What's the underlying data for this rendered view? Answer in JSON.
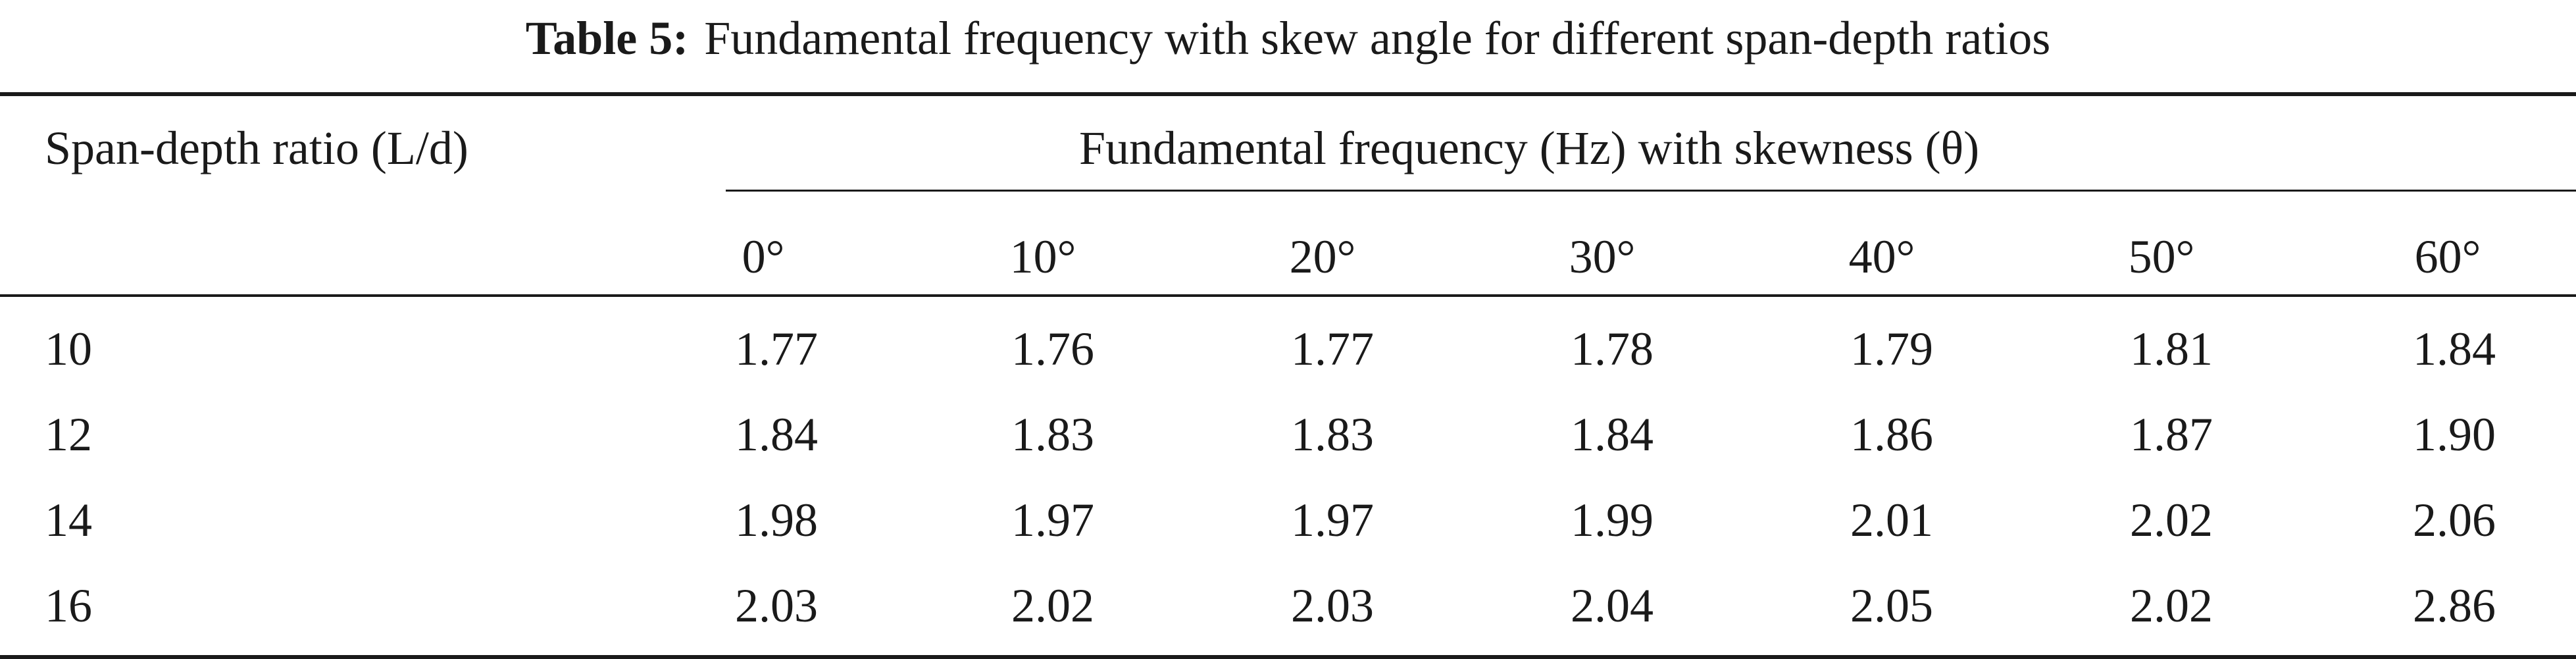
{
  "caption": {
    "label": "Table 5:",
    "text": "Fundamental frequency with skew angle for different span-depth ratios"
  },
  "table": {
    "row_header_label": "Span-depth ratio (L/d)",
    "group_header": "Fundamental frequency (Hz) with skewness (θ)",
    "columns": [
      "0°",
      "10°",
      "20°",
      "30°",
      "40°",
      "50°",
      "60°"
    ],
    "rows": [
      {
        "ratio": "10",
        "values": [
          "1.77",
          "1.76",
          "1.77",
          "1.78",
          "1.79",
          "1.81",
          "1.84"
        ]
      },
      {
        "ratio": "12",
        "values": [
          "1.84",
          "1.83",
          "1.83",
          "1.84",
          "1.86",
          "1.87",
          "1.90"
        ]
      },
      {
        "ratio": "14",
        "values": [
          "1.98",
          "1.97",
          "1.97",
          "1.99",
          "2.01",
          "2.02",
          "2.06"
        ]
      },
      {
        "ratio": "16",
        "values": [
          "2.03",
          "2.02",
          "2.03",
          "2.04",
          "2.05",
          "2.02",
          "2.86"
        ]
      }
    ]
  }
}
